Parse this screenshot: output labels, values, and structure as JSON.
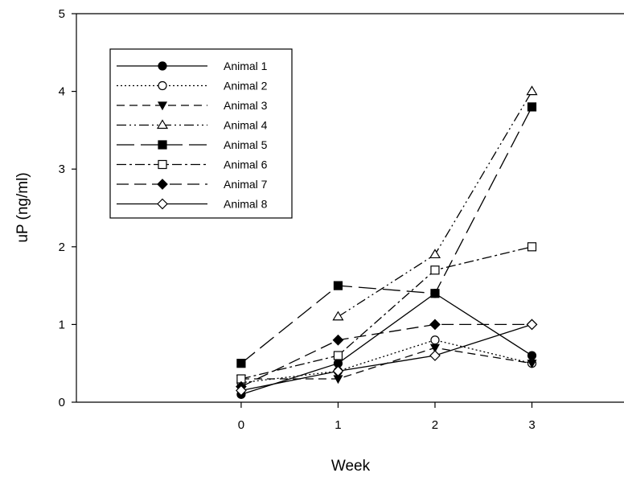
{
  "chart_data": {
    "type": "line",
    "xlabel": "Week",
    "ylabel": "uP (ng/ml)",
    "xlim": [
      -1.7,
      3.95
    ],
    "ylim": [
      0,
      5
    ],
    "xticks": [
      "0",
      "1",
      "2",
      "3"
    ],
    "yticks": [
      "0",
      "1",
      "2",
      "3",
      "4",
      "5"
    ],
    "grid": false,
    "legend_position": "top-left",
    "series": [
      {
        "name": "Animal 1",
        "marker": "circle-filled",
        "dash": "solid",
        "x": [
          0,
          1,
          2,
          3
        ],
        "y": [
          0.1,
          0.5,
          1.4,
          0.6
        ]
      },
      {
        "name": "Animal 2",
        "marker": "circle-open",
        "dash": "dotted",
        "x": [
          0,
          1,
          2,
          3
        ],
        "y": [
          0.25,
          0.4,
          0.8,
          0.5
        ]
      },
      {
        "name": "Animal 3",
        "marker": "triangle-down-filled",
        "dash": "dashed",
        "x": [
          0,
          1,
          2,
          3
        ],
        "y": [
          0.3,
          0.3,
          0.7,
          0.5
        ]
      },
      {
        "name": "Animal 4",
        "marker": "triangle-up-open",
        "dash": "dash-dot-dot",
        "x": [
          1,
          2,
          3
        ],
        "y": [
          1.1,
          1.9,
          4.0
        ]
      },
      {
        "name": "Animal 5",
        "marker": "square-filled",
        "dash": "long-dash",
        "x": [
          0,
          1,
          2,
          3
        ],
        "y": [
          0.5,
          1.5,
          1.4,
          3.8
        ]
      },
      {
        "name": "Animal 6",
        "marker": "square-open",
        "dash": "dash-dot",
        "x": [
          0,
          1,
          2,
          3
        ],
        "y": [
          0.3,
          0.6,
          1.7,
          2.0
        ]
      },
      {
        "name": "Animal 7",
        "marker": "diamond-filled",
        "dash": "medium-dash",
        "x": [
          0,
          1,
          2,
          3
        ],
        "y": [
          0.2,
          0.8,
          1.0,
          1.0
        ]
      },
      {
        "name": "Animal 8",
        "marker": "diamond-open",
        "dash": "solid",
        "x": [
          0,
          1,
          2,
          3
        ],
        "y": [
          0.15,
          0.4,
          0.6,
          1.0
        ]
      }
    ]
  }
}
